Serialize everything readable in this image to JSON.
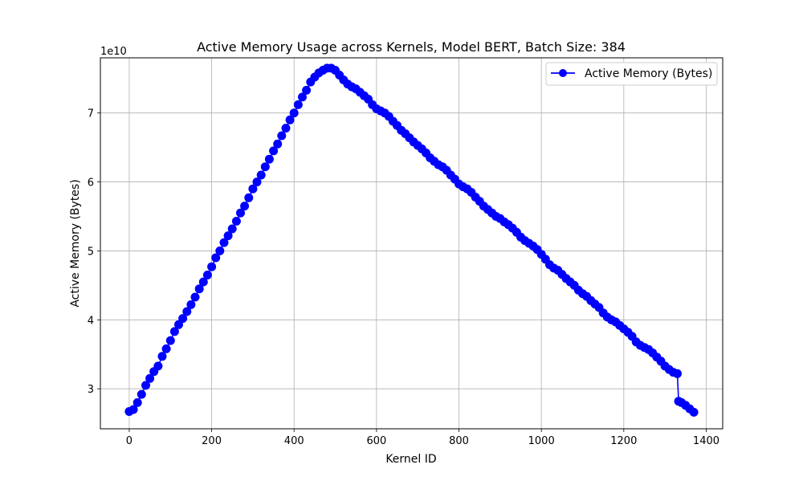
{
  "chart_data": {
    "type": "line",
    "title": "Active Memory Usage across Kernels, Model BERT, Batch Size: 384",
    "xlabel": "Kernel ID",
    "ylabel": "Active Memory (Bytes)",
    "y_scale_label": "1e10",
    "xlim": [
      -70,
      1440
    ],
    "ylim": [
      2.42,
      7.8
    ],
    "x_ticks": [
      0,
      200,
      400,
      600,
      800,
      1000,
      1200,
      1400
    ],
    "y_ticks": [
      3,
      4,
      5,
      6,
      7
    ],
    "grid": true,
    "legend_position": "top-right",
    "series": [
      {
        "name": "Active Memory (Bytes)",
        "color": "#0000ff",
        "marker": "circle",
        "points": [
          [
            0,
            2.67
          ],
          [
            10,
            2.7
          ],
          [
            20,
            2.8
          ],
          [
            30,
            2.92
          ],
          [
            40,
            3.05
          ],
          [
            50,
            3.15
          ],
          [
            60,
            3.25
          ],
          [
            70,
            3.33
          ],
          [
            80,
            3.47
          ],
          [
            90,
            3.58
          ],
          [
            100,
            3.7
          ],
          [
            110,
            3.83
          ],
          [
            120,
            3.93
          ],
          [
            130,
            4.02
          ],
          [
            140,
            4.12
          ],
          [
            150,
            4.22
          ],
          [
            160,
            4.33
          ],
          [
            170,
            4.45
          ],
          [
            180,
            4.55
          ],
          [
            190,
            4.65
          ],
          [
            200,
            4.77
          ],
          [
            210,
            4.9
          ],
          [
            220,
            5.0
          ],
          [
            230,
            5.12
          ],
          [
            240,
            5.22
          ],
          [
            250,
            5.32
          ],
          [
            260,
            5.43
          ],
          [
            270,
            5.55
          ],
          [
            280,
            5.65
          ],
          [
            290,
            5.77
          ],
          [
            300,
            5.9
          ],
          [
            310,
            6.0
          ],
          [
            320,
            6.1
          ],
          [
            330,
            6.22
          ],
          [
            340,
            6.33
          ],
          [
            350,
            6.45
          ],
          [
            360,
            6.55
          ],
          [
            370,
            6.67
          ],
          [
            380,
            6.78
          ],
          [
            390,
            6.9
          ],
          [
            400,
            7.0
          ],
          [
            410,
            7.12
          ],
          [
            420,
            7.23
          ],
          [
            430,
            7.33
          ],
          [
            440,
            7.45
          ],
          [
            450,
            7.52
          ],
          [
            460,
            7.58
          ],
          [
            470,
            7.62
          ],
          [
            480,
            7.65
          ],
          [
            490,
            7.65
          ],
          [
            500,
            7.62
          ],
          [
            510,
            7.55
          ],
          [
            520,
            7.48
          ],
          [
            530,
            7.42
          ],
          [
            540,
            7.38
          ],
          [
            550,
            7.35
          ],
          [
            560,
            7.3
          ],
          [
            570,
            7.25
          ],
          [
            580,
            7.2
          ],
          [
            590,
            7.12
          ],
          [
            600,
            7.06
          ],
          [
            610,
            7.03
          ],
          [
            620,
            7.0
          ],
          [
            630,
            6.95
          ],
          [
            640,
            6.88
          ],
          [
            650,
            6.82
          ],
          [
            660,
            6.75
          ],
          [
            670,
            6.7
          ],
          [
            680,
            6.64
          ],
          [
            690,
            6.58
          ],
          [
            700,
            6.53
          ],
          [
            710,
            6.48
          ],
          [
            720,
            6.42
          ],
          [
            730,
            6.35
          ],
          [
            740,
            6.3
          ],
          [
            750,
            6.25
          ],
          [
            760,
            6.22
          ],
          [
            770,
            6.17
          ],
          [
            780,
            6.1
          ],
          [
            790,
            6.04
          ],
          [
            800,
            5.97
          ],
          [
            810,
            5.93
          ],
          [
            820,
            5.9
          ],
          [
            830,
            5.85
          ],
          [
            840,
            5.78
          ],
          [
            850,
            5.72
          ],
          [
            860,
            5.65
          ],
          [
            870,
            5.6
          ],
          [
            880,
            5.55
          ],
          [
            890,
            5.5
          ],
          [
            900,
            5.47
          ],
          [
            910,
            5.42
          ],
          [
            920,
            5.38
          ],
          [
            930,
            5.33
          ],
          [
            940,
            5.27
          ],
          [
            950,
            5.2
          ],
          [
            960,
            5.15
          ],
          [
            970,
            5.11
          ],
          [
            980,
            5.07
          ],
          [
            990,
            5.02
          ],
          [
            1000,
            4.95
          ],
          [
            1010,
            4.88
          ],
          [
            1020,
            4.8
          ],
          [
            1030,
            4.75
          ],
          [
            1040,
            4.72
          ],
          [
            1050,
            4.66
          ],
          [
            1060,
            4.6
          ],
          [
            1070,
            4.55
          ],
          [
            1080,
            4.5
          ],
          [
            1090,
            4.43
          ],
          [
            1100,
            4.38
          ],
          [
            1110,
            4.34
          ],
          [
            1120,
            4.28
          ],
          [
            1130,
            4.23
          ],
          [
            1140,
            4.18
          ],
          [
            1150,
            4.1
          ],
          [
            1160,
            4.04
          ],
          [
            1170,
            4.0
          ],
          [
            1180,
            3.97
          ],
          [
            1190,
            3.92
          ],
          [
            1200,
            3.87
          ],
          [
            1210,
            3.82
          ],
          [
            1220,
            3.76
          ],
          [
            1230,
            3.68
          ],
          [
            1240,
            3.63
          ],
          [
            1250,
            3.6
          ],
          [
            1260,
            3.57
          ],
          [
            1270,
            3.52
          ],
          [
            1280,
            3.46
          ],
          [
            1290,
            3.4
          ],
          [
            1300,
            3.33
          ],
          [
            1310,
            3.28
          ],
          [
            1320,
            3.24
          ],
          [
            1330,
            3.22
          ],
          [
            1333,
            2.82
          ],
          [
            1340,
            2.8
          ],
          [
            1350,
            2.76
          ],
          [
            1360,
            2.71
          ],
          [
            1370,
            2.66
          ]
        ]
      }
    ]
  }
}
